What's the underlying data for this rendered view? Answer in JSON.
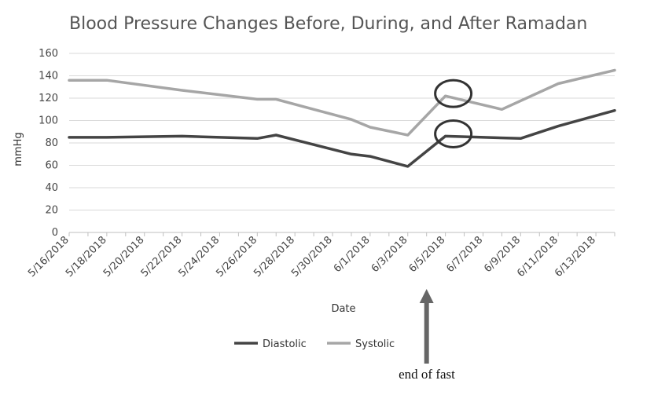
{
  "chart_data": {
    "type": "line",
    "title": "Blood Pressure Changes Before, During, and After Ramadan",
    "xlabel": "Date",
    "ylabel": "mmHg",
    "ylim": [
      0,
      160
    ],
    "yticks": [
      0,
      20,
      40,
      60,
      80,
      100,
      120,
      140,
      160
    ],
    "grid": true,
    "legend_position": "bottom",
    "x_tick_labels": [
      "5/16/2018",
      "5/18/2018",
      "5/20/2018",
      "5/22/2018",
      "5/24/2018",
      "5/26/2018",
      "5/28/2018",
      "5/30/2018",
      "6/1/2018",
      "6/3/2018",
      "6/5/2018",
      "6/7/2018",
      "6/9/2018",
      "6/11/2018",
      "6/13/2018"
    ],
    "x_start": "2018-05-16",
    "x_end": "2018-06-14",
    "series": [
      {
        "name": "Diastolic",
        "color": "#444444",
        "points": [
          {
            "date": "2018-05-16",
            "value": 85
          },
          {
            "date": "2018-05-18",
            "value": 85
          },
          {
            "date": "2018-05-22",
            "value": 86
          },
          {
            "date": "2018-05-26",
            "value": 84
          },
          {
            "date": "2018-05-27",
            "value": 87
          },
          {
            "date": "2018-05-31",
            "value": 70
          },
          {
            "date": "2018-06-01",
            "value": 68
          },
          {
            "date": "2018-06-03",
            "value": 59
          },
          {
            "date": "2018-06-05",
            "value": 86
          },
          {
            "date": "2018-06-09",
            "value": 84
          },
          {
            "date": "2018-06-11",
            "value": 95
          },
          {
            "date": "2018-06-14",
            "value": 109
          }
        ]
      },
      {
        "name": "Systolic",
        "color": "#a6a6a6",
        "points": [
          {
            "date": "2018-05-16",
            "value": 136
          },
          {
            "date": "2018-05-18",
            "value": 136
          },
          {
            "date": "2018-05-22",
            "value": 127
          },
          {
            "date": "2018-05-26",
            "value": 119
          },
          {
            "date": "2018-05-27",
            "value": 119
          },
          {
            "date": "2018-05-31",
            "value": 101
          },
          {
            "date": "2018-06-01",
            "value": 94
          },
          {
            "date": "2018-06-03",
            "value": 87
          },
          {
            "date": "2018-06-05",
            "value": 122
          },
          {
            "date": "2018-06-08",
            "value": 110
          },
          {
            "date": "2018-06-11",
            "value": 133
          },
          {
            "date": "2018-06-14",
            "value": 145
          }
        ]
      }
    ],
    "annotations": {
      "circled_dates": [
        "2018-06-05"
      ],
      "arrow_text": "end of fast",
      "arrow_date": "2018-06-04"
    }
  }
}
